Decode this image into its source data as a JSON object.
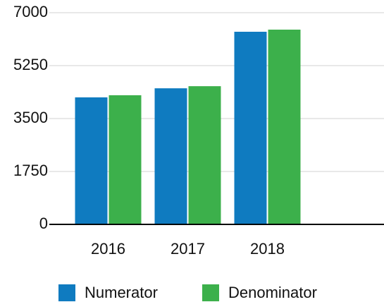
{
  "chart_data": {
    "type": "bar",
    "categories": [
      "2016",
      "2017",
      "2018"
    ],
    "series": [
      {
        "name": "Numerator",
        "color": "#0f7bc0",
        "values": [
          4200,
          4500,
          6370
        ]
      },
      {
        "name": "Denominator",
        "color": "#3cb04b",
        "values": [
          4270,
          4570,
          6440
        ]
      }
    ],
    "ylim": [
      0,
      7000
    ],
    "yticks": [
      0,
      1750,
      3500,
      5250,
      7000
    ],
    "grid": true,
    "legend": "bottom"
  }
}
